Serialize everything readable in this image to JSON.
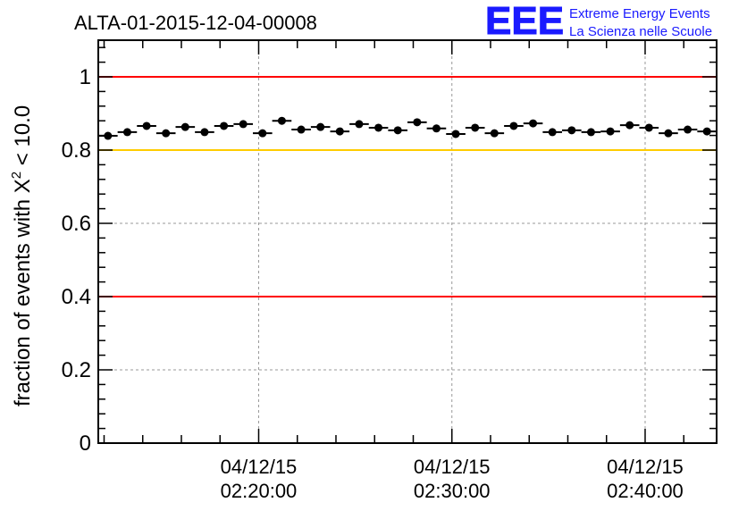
{
  "chart_data": {
    "type": "scatter",
    "title": "ALTA-01-2015-12-04-00008",
    "xlabel": "",
    "ylabel": "fraction of events with X^2 < 10.0",
    "ylabel_parts": {
      "main": "fraction of events with X",
      "sup": "2",
      "tail": " < 10.0"
    },
    "x_units": "minutes after 04/12/15 02:00:00",
    "xlim": [
      11.7,
      43.7
    ],
    "ylim": [
      0,
      1.1
    ],
    "bin_width": 1.0,
    "grid": true,
    "x_ticks": [
      {
        "value": 20,
        "date": "04/12/15",
        "time": "02:20:00"
      },
      {
        "value": 30,
        "date": "04/12/15",
        "time": "02:30:00"
      },
      {
        "value": 40,
        "date": "04/12/15",
        "time": "02:40:00"
      }
    ],
    "y_ticks": [
      {
        "value": 0,
        "label": "0"
      },
      {
        "value": 0.2,
        "label": "0.2"
      },
      {
        "value": 0.4,
        "label": "0.4"
      },
      {
        "value": 0.6,
        "label": "0.6"
      },
      {
        "value": 0.8,
        "label": "0.8"
      },
      {
        "value": 1,
        "label": "1"
      }
    ],
    "reference_lines": [
      {
        "y": 1.0,
        "color": "#ff0000"
      },
      {
        "y": 0.8,
        "color": "#ffcc00"
      },
      {
        "y": 0.4,
        "color": "#ff0000"
      }
    ],
    "x": [
      12.2,
      13.2,
      14.2,
      15.2,
      16.2,
      17.2,
      18.2,
      19.2,
      20.2,
      21.2,
      22.2,
      23.2,
      24.2,
      25.2,
      26.2,
      27.2,
      28.2,
      29.2,
      30.2,
      31.2,
      32.2,
      33.2,
      34.2,
      35.2,
      36.2,
      37.2,
      38.2,
      39.2,
      40.2,
      41.2,
      42.2,
      43.2
    ],
    "y": [
      0.839,
      0.849,
      0.866,
      0.846,
      0.863,
      0.849,
      0.866,
      0.871,
      0.846,
      0.88,
      0.856,
      0.863,
      0.851,
      0.871,
      0.861,
      0.854,
      0.876,
      0.859,
      0.844,
      0.861,
      0.846,
      0.866,
      0.873,
      0.849,
      0.854,
      0.849,
      0.851,
      0.868,
      0.861,
      0.846,
      0.856,
      0.851
    ]
  },
  "logo": {
    "text": "EEE",
    "line1": "Extreme Energy Events",
    "line2": "La Scienza nelle Scuole",
    "color": "#1a1aff"
  }
}
